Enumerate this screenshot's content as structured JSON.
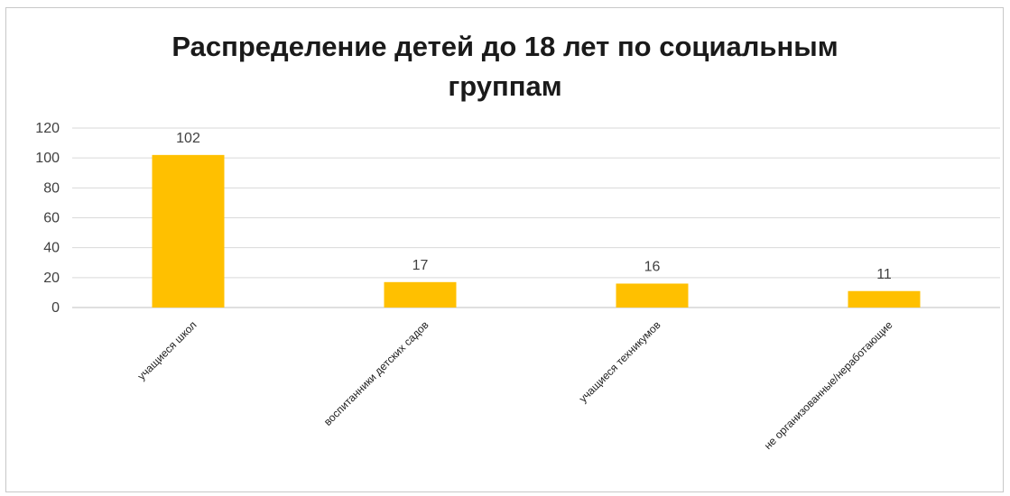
{
  "chart_data": {
    "type": "bar",
    "title_lines": [
      "Распределение детей до 18 лет по социальным",
      "группам"
    ],
    "categories": [
      "учащиеся школ",
      "воспитанники детских садов",
      "учащиеся техникумов",
      "не организованные/неработающие"
    ],
    "values": [
      102,
      17,
      16,
      11
    ],
    "data_labels": [
      "102",
      "17",
      "16",
      "11"
    ],
    "ylim": [
      0,
      120
    ],
    "yticks": [
      0,
      20,
      40,
      60,
      80,
      100,
      120
    ],
    "grid": true,
    "legend": "none",
    "bar_color": "#FFC000",
    "grid_color": "#d9d9d9"
  }
}
